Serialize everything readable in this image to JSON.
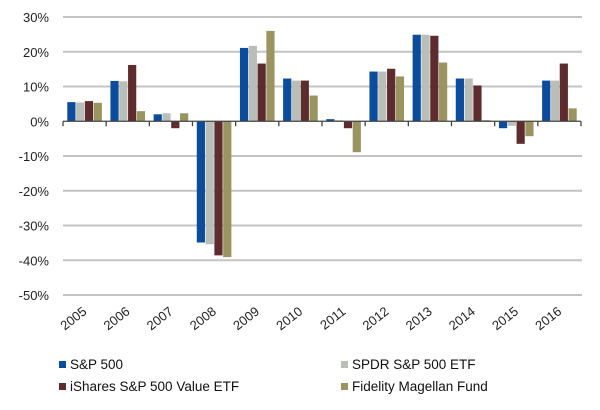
{
  "chart_data": {
    "type": "bar",
    "title": "",
    "xlabel": "",
    "ylabel": "",
    "ylim": [
      -50,
      30
    ],
    "yticks": [
      30,
      20,
      10,
      0,
      -10,
      -20,
      -30,
      -40,
      -50
    ],
    "ytick_labels": [
      "30%",
      "20%",
      "10%",
      "0%",
      "-10%",
      "-20%",
      "-30%",
      "-40%",
      "-50%"
    ],
    "grid": true,
    "legend_position": "bottom",
    "categories": [
      "2005",
      "2006",
      "2007",
      "2008",
      "2009",
      "2010",
      "2011",
      "2012",
      "2013",
      "2014",
      "2015",
      "2016"
    ],
    "series": [
      {
        "name": "S&P 500",
        "color": "#0b4c9c",
        "values": [
          5.5,
          11.6,
          2.0,
          -34.9,
          21.1,
          12.3,
          0.6,
          14.3,
          24.9,
          12.3,
          -2.0,
          11.7
        ]
      },
      {
        "name": "SPDR S&P 500 ETF",
        "color": "#b9beb9",
        "values": [
          5.4,
          11.5,
          2.3,
          -35.4,
          21.7,
          11.7,
          0.3,
          14.3,
          24.9,
          12.3,
          -1.3,
          11.7
        ]
      },
      {
        "name": "iShares S&P 500 Value ETF",
        "color": "#5e2c2e",
        "values": [
          5.8,
          16.2,
          -2.0,
          -38.6,
          16.6,
          11.7,
          -2.0,
          15.1,
          24.6,
          10.3,
          -6.5,
          16.6
        ]
      },
      {
        "name": "Fidelity Magellan Fund",
        "color": "#9a9460",
        "values": [
          5.3,
          2.9,
          2.3,
          -39.1,
          26.0,
          7.4,
          -8.9,
          12.9,
          16.9,
          0.3,
          -4.3,
          3.7
        ]
      }
    ]
  }
}
